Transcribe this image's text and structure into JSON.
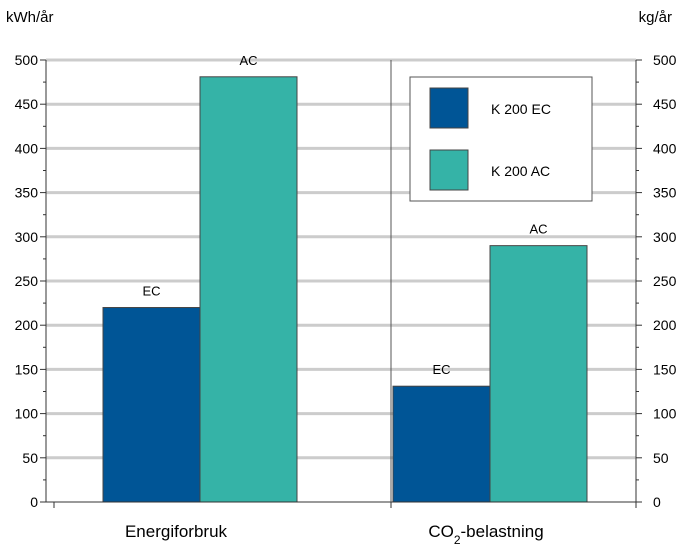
{
  "chart_data": {
    "type": "bar",
    "left_unit": "kWh/år",
    "right_unit": "kg/år",
    "categories": [
      {
        "main": "Energiforbruk",
        "sub": "",
        "tail": ""
      },
      {
        "main": "CO",
        "sub": "2",
        "tail": "-belastning"
      }
    ],
    "series": [
      {
        "name": "K 200 EC",
        "color": "#005596",
        "values": [
          220,
          131
        ],
        "labels": [
          "EC",
          "EC"
        ]
      },
      {
        "name": "K 200 AC",
        "color": "#35b3a7",
        "values": [
          481,
          290
        ],
        "labels": [
          "AC",
          "AC"
        ]
      }
    ],
    "yticks": [
      "0",
      "50",
      "100",
      "150",
      "200",
      "250",
      "300",
      "350",
      "400",
      "450",
      "500"
    ],
    "ylim": [
      0,
      500
    ],
    "grid": true,
    "legend_position": "top-right"
  }
}
